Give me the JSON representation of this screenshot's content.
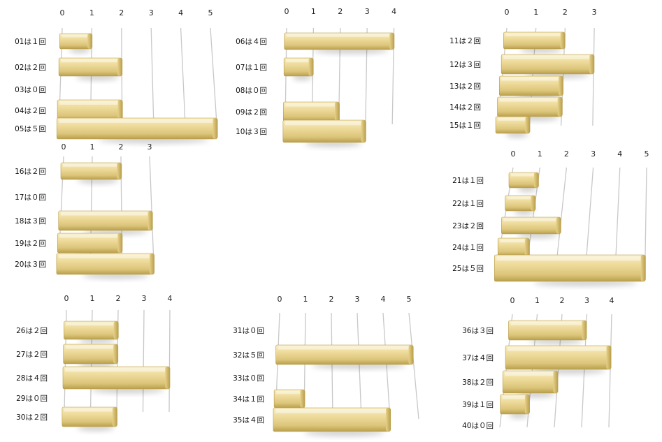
{
  "colors": {
    "bar_light": "#f6e8b4",
    "bar_mid": "#e3cf86",
    "bar_dark": "#b89d48",
    "bar_edge": "#a88e3e",
    "grid": "#c8c8c8",
    "text": "#111111"
  },
  "chart_data": [
    {
      "type": "bar",
      "orientation": "horizontal",
      "categories": [
        "01は１回",
        "02は２回",
        "03は０回",
        "04は２回",
        "05は５回"
      ],
      "values": [
        1,
        2,
        0,
        2,
        5
      ],
      "xticks": [
        "0",
        "1",
        "2",
        "3",
        "4",
        "5"
      ],
      "xlim": [
        0,
        5
      ]
    },
    {
      "type": "bar",
      "orientation": "horizontal",
      "categories": [
        "06は４回",
        "07は１回",
        "08は０回",
        "09は２回",
        "10は３回"
      ],
      "values": [
        4,
        1,
        0,
        2,
        3
      ],
      "xticks": [
        "0",
        "1",
        "2",
        "3",
        "4"
      ],
      "xlim": [
        0,
        4
      ]
    },
    {
      "type": "bar",
      "orientation": "horizontal",
      "categories": [
        "11は２回",
        "12は３回",
        "13は２回",
        "14は２回",
        "15は１回"
      ],
      "values": [
        2,
        3,
        2,
        2,
        1
      ],
      "xticks": [
        "0",
        "1",
        "2",
        "3"
      ],
      "xlim": [
        0,
        3
      ]
    },
    {
      "type": "bar",
      "orientation": "horizontal",
      "categories": [
        "16は２回",
        "17は０回",
        "18は３回",
        "19は２回",
        "20は３回"
      ],
      "values": [
        2,
        0,
        3,
        2,
        3
      ],
      "xticks": [
        "0",
        "1",
        "2",
        "3"
      ],
      "xlim": [
        0,
        3
      ]
    },
    {
      "type": "bar",
      "orientation": "horizontal",
      "categories": [
        "21は１回",
        "22は１回",
        "23は２回",
        "24は１回",
        "25は５回"
      ],
      "values": [
        1,
        1,
        2,
        1,
        5
      ],
      "xticks": [
        "0",
        "1",
        "2",
        "3",
        "4",
        "5"
      ],
      "xlim": [
        0,
        5
      ]
    },
    {
      "type": "bar",
      "orientation": "horizontal",
      "categories": [
        "26は２回",
        "27は２回",
        "28は４回",
        "29は０回",
        "30は２回"
      ],
      "values": [
        2,
        2,
        4,
        0,
        2
      ],
      "xticks": [
        "0",
        "1",
        "2",
        "3",
        "4"
      ],
      "xlim": [
        0,
        4
      ]
    },
    {
      "type": "bar",
      "orientation": "horizontal",
      "categories": [
        "31は０回",
        "32は５回",
        "33は０回",
        "34は１回",
        "35は４回"
      ],
      "values": [
        0,
        5,
        0,
        1,
        4
      ],
      "xticks": [
        "0",
        "1",
        "2",
        "3",
        "4",
        "5"
      ],
      "xlim": [
        0,
        5
      ]
    },
    {
      "type": "bar",
      "orientation": "horizontal",
      "categories": [
        "36は３回",
        "37は４回",
        "38は２回",
        "39は１回",
        "40は０回"
      ],
      "values": [
        3,
        4,
        2,
        1,
        0
      ],
      "xticks": [
        "0",
        "1",
        "2",
        "3",
        "4"
      ],
      "xlim": [
        0,
        4
      ]
    }
  ]
}
